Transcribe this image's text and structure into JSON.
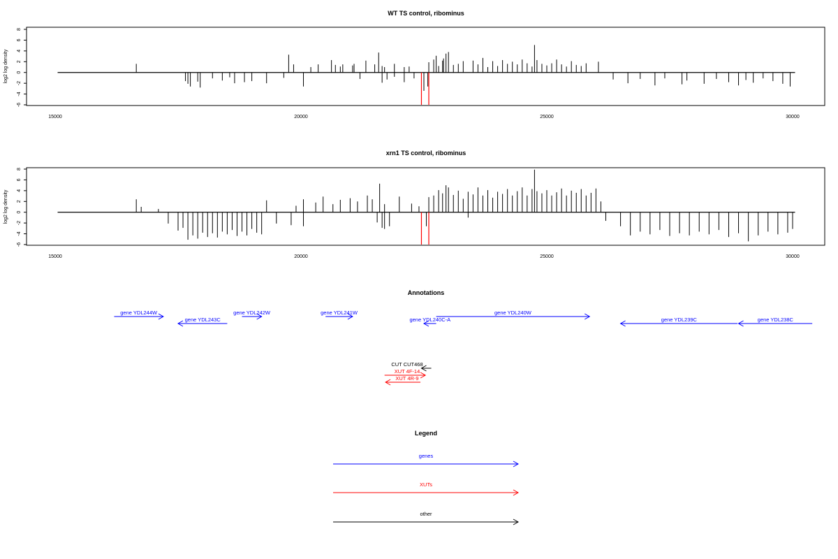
{
  "colors": {
    "gene": "#0000ff",
    "xut": "#ff0000",
    "other": "#000000",
    "marker": "#ff0000"
  },
  "chart_data": [
    {
      "type": "bar",
      "title": "WT TS control, ribominus",
      "ylabel": "log2 log density",
      "xlim": [
        15000,
        30000
      ],
      "ylim": [
        -6,
        8
      ],
      "xticks": [
        "15000",
        "20000",
        "25000",
        "30000"
      ],
      "yticks": [
        "-6",
        "-4",
        "-2",
        "0",
        "2",
        "4",
        "6",
        "8"
      ],
      "marker_positions": [
        22450,
        22600
      ],
      "marker_range": [
        -6,
        0
      ],
      "positive_series": [
        [
          16650,
          1.6
        ],
        [
          19750,
          3.3
        ],
        [
          19850,
          1.5
        ],
        [
          20200,
          1.0
        ],
        [
          20350,
          1.5
        ],
        [
          20620,
          2.3
        ],
        [
          20700,
          1.4
        ],
        [
          20800,
          1.1
        ],
        [
          20850,
          1.5
        ],
        [
          21050,
          1.3
        ],
        [
          21080,
          1.6
        ],
        [
          21320,
          2.2
        ],
        [
          21500,
          1.5
        ],
        [
          21580,
          3.7
        ],
        [
          21650,
          1.2
        ],
        [
          21700,
          1.0
        ],
        [
          21900,
          1.6
        ],
        [
          22100,
          1.0
        ],
        [
          22200,
          1.1
        ],
        [
          22600,
          1.9
        ],
        [
          22700,
          2.4
        ],
        [
          22750,
          3.1
        ],
        [
          22800,
          1.2
        ],
        [
          22880,
          2.2
        ],
        [
          22900,
          2.6
        ],
        [
          22950,
          3.5
        ],
        [
          23000,
          3.8
        ],
        [
          23100,
          1.4
        ],
        [
          23200,
          1.6
        ],
        [
          23300,
          2.1
        ],
        [
          23500,
          2.2
        ],
        [
          23600,
          1.5
        ],
        [
          23700,
          2.7
        ],
        [
          23800,
          1.0
        ],
        [
          23900,
          2.1
        ],
        [
          24000,
          1.2
        ],
        [
          24100,
          2.3
        ],
        [
          24200,
          1.6
        ],
        [
          24300,
          2.0
        ],
        [
          24400,
          1.5
        ],
        [
          24500,
          2.4
        ],
        [
          24600,
          1.7
        ],
        [
          24700,
          1.1
        ],
        [
          24750,
          5.1
        ],
        [
          24800,
          2.3
        ],
        [
          24900,
          1.6
        ],
        [
          25000,
          1.3
        ],
        [
          25100,
          1.7
        ],
        [
          25200,
          2.4
        ],
        [
          25300,
          1.5
        ],
        [
          25400,
          1.1
        ],
        [
          25500,
          2.1
        ],
        [
          25600,
          1.4
        ],
        [
          25700,
          1.2
        ],
        [
          25800,
          1.7
        ],
        [
          26050,
          2.0
        ]
      ],
      "negative_series": [
        [
          17650,
          -1.6
        ],
        [
          17700,
          -2.1
        ],
        [
          17750,
          -2.6
        ],
        [
          17900,
          -1.7
        ],
        [
          17950,
          -2.8
        ],
        [
          18200,
          -1.1
        ],
        [
          18400,
          -1.5
        ],
        [
          18550,
          -0.9
        ],
        [
          18650,
          -2.0
        ],
        [
          18850,
          -1.8
        ],
        [
          19000,
          -1.6
        ],
        [
          19300,
          -2.0
        ],
        [
          19650,
          -1.0
        ],
        [
          20050,
          -2.6
        ],
        [
          21200,
          -1.2
        ],
        [
          21650,
          -1.9
        ],
        [
          21750,
          -1.3
        ],
        [
          21900,
          -0.8
        ],
        [
          22100,
          -1.8
        ],
        [
          22300,
          -1.1
        ],
        [
          22500,
          -3.4
        ],
        [
          22580,
          -2.6
        ],
        [
          26350,
          -1.3
        ],
        [
          26650,
          -2.0
        ],
        [
          26900,
          -1.2
        ],
        [
          27200,
          -2.4
        ],
        [
          27400,
          -1.1
        ],
        [
          27750,
          -2.2
        ],
        [
          27850,
          -1.5
        ],
        [
          28200,
          -2.1
        ],
        [
          28450,
          -1.2
        ],
        [
          28700,
          -1.8
        ],
        [
          28900,
          -2.4
        ],
        [
          29050,
          -1.4
        ],
        [
          29200,
          -1.9
        ],
        [
          29400,
          -1.1
        ],
        [
          29600,
          -1.6
        ],
        [
          29800,
          -2.1
        ],
        [
          29950,
          -2.6
        ]
      ]
    },
    {
      "type": "bar",
      "title": "xrn1 TS control, ribominus",
      "ylabel": "log2 log density",
      "xlim": [
        15000,
        30000
      ],
      "ylim": [
        -6,
        8
      ],
      "xticks": [
        "15000",
        "20000",
        "25000",
        "30000"
      ],
      "yticks": [
        "-6",
        "-4",
        "-2",
        "0",
        "2",
        "4",
        "6",
        "8"
      ],
      "marker_positions": [
        22450,
        22600
      ],
      "marker_range": [
        -6,
        0
      ],
      "positive_series": [
        [
          16650,
          2.4
        ],
        [
          16750,
          1.0
        ],
        [
          17100,
          0.6
        ],
        [
          19300,
          2.2
        ],
        [
          19900,
          1.2
        ],
        [
          20050,
          2.4
        ],
        [
          20300,
          1.8
        ],
        [
          20450,
          2.9
        ],
        [
          20650,
          1.5
        ],
        [
          20800,
          2.3
        ],
        [
          21000,
          2.6
        ],
        [
          21150,
          2.0
        ],
        [
          21350,
          3.1
        ],
        [
          21450,
          2.4
        ],
        [
          21600,
          5.3
        ],
        [
          21700,
          1.5
        ],
        [
          22000,
          2.9
        ],
        [
          22250,
          1.6
        ],
        [
          22400,
          1.1
        ],
        [
          22600,
          2.8
        ],
        [
          22700,
          3.1
        ],
        [
          22800,
          4.1
        ],
        [
          22880,
          3.5
        ],
        [
          22950,
          5.0
        ],
        [
          23000,
          4.6
        ],
        [
          23100,
          3.2
        ],
        [
          23200,
          4.0
        ],
        [
          23300,
          2.5
        ],
        [
          23400,
          3.8
        ],
        [
          23500,
          3.3
        ],
        [
          23600,
          4.6
        ],
        [
          23700,
          3.1
        ],
        [
          23800,
          4.1
        ],
        [
          23900,
          2.7
        ],
        [
          24000,
          3.8
        ],
        [
          24100,
          3.4
        ],
        [
          24200,
          4.3
        ],
        [
          24300,
          3.1
        ],
        [
          24400,
          3.9
        ],
        [
          24500,
          4.6
        ],
        [
          24600,
          3.1
        ],
        [
          24700,
          4.3
        ],
        [
          24750,
          7.9
        ],
        [
          24800,
          3.9
        ],
        [
          24900,
          3.5
        ],
        [
          25000,
          4.1
        ],
        [
          25100,
          3.1
        ],
        [
          25200,
          3.7
        ],
        [
          25300,
          4.4
        ],
        [
          25400,
          3.1
        ],
        [
          25500,
          4.0
        ],
        [
          25600,
          3.6
        ],
        [
          25700,
          4.3
        ],
        [
          25800,
          3.1
        ],
        [
          25900,
          3.6
        ],
        [
          26000,
          4.4
        ],
        [
          26100,
          2.0
        ]
      ],
      "negative_series": [
        [
          17300,
          -2.1
        ],
        [
          17500,
          -3.4
        ],
        [
          17600,
          -2.9
        ],
        [
          17700,
          -5.1
        ],
        [
          17800,
          -4.3
        ],
        [
          17900,
          -4.9
        ],
        [
          18000,
          -3.8
        ],
        [
          18100,
          -4.6
        ],
        [
          18200,
          -3.9
        ],
        [
          18300,
          -4.7
        ],
        [
          18400,
          -3.6
        ],
        [
          18500,
          -4.1
        ],
        [
          18600,
          -3.3
        ],
        [
          18700,
          -4.4
        ],
        [
          18800,
          -3.6
        ],
        [
          18900,
          -4.3
        ],
        [
          19000,
          -3.1
        ],
        [
          19100,
          -3.8
        ],
        [
          19200,
          -4.1
        ],
        [
          19500,
          -2.1
        ],
        [
          19800,
          -2.4
        ],
        [
          20050,
          -2.6
        ],
        [
          21550,
          -1.9
        ],
        [
          21650,
          -2.9
        ],
        [
          21700,
          -3.1
        ],
        [
          21800,
          -2.6
        ],
        [
          22550,
          -2.6
        ],
        [
          23400,
          -1.0
        ],
        [
          26200,
          -1.6
        ],
        [
          26500,
          -2.6
        ],
        [
          26700,
          -4.3
        ],
        [
          26900,
          -3.6
        ],
        [
          27100,
          -4.1
        ],
        [
          27300,
          -3.3
        ],
        [
          27500,
          -4.4
        ],
        [
          27700,
          -3.9
        ],
        [
          27900,
          -4.3
        ],
        [
          28100,
          -3.6
        ],
        [
          28300,
          -4.1
        ],
        [
          28500,
          -3.3
        ],
        [
          28700,
          -4.6
        ],
        [
          28900,
          -3.9
        ],
        [
          29100,
          -5.4
        ],
        [
          29300,
          -4.3
        ],
        [
          29500,
          -3.6
        ],
        [
          29700,
          -4.1
        ],
        [
          29900,
          -3.8
        ],
        [
          30000,
          -3.1
        ]
      ]
    }
  ],
  "annotations": {
    "title": "Annotations",
    "genes": [
      {
        "label": "gene YDL244W",
        "from": 16200,
        "to": 17200
      },
      {
        "label": "gene YDL243C",
        "from": 18500,
        "to": 17500
      },
      {
        "label": "gene YDL242W",
        "from": 18800,
        "to": 19200
      },
      {
        "label": "gene YDL241W",
        "from": 20500,
        "to": 21050
      },
      {
        "label": "gene YDL240C-A",
        "from": 22750,
        "to": 22500
      },
      {
        "label": "gene YDL240W",
        "from": 22750,
        "to": 25870
      },
      {
        "label": "gene YDL239C",
        "from": 28880,
        "to": 26500
      },
      {
        "label": "gene YDL238C",
        "from": 30400,
        "to": 28900
      }
    ],
    "features": [
      {
        "label": "CUT CUT468",
        "kind": "other",
        "from": 22650,
        "to": 22450
      },
      {
        "label": "XUT 4F-14",
        "kind": "xut",
        "from": 21700,
        "to": 22530
      },
      {
        "label": "XUT 4R-9",
        "kind": "xut",
        "from": 22430,
        "to": 21720
      }
    ]
  },
  "legend": {
    "title": "Legend",
    "items": [
      {
        "label": "genes",
        "kind": "gene"
      },
      {
        "label": "XUTs",
        "kind": "xut"
      },
      {
        "label": "other",
        "kind": "other"
      }
    ]
  }
}
